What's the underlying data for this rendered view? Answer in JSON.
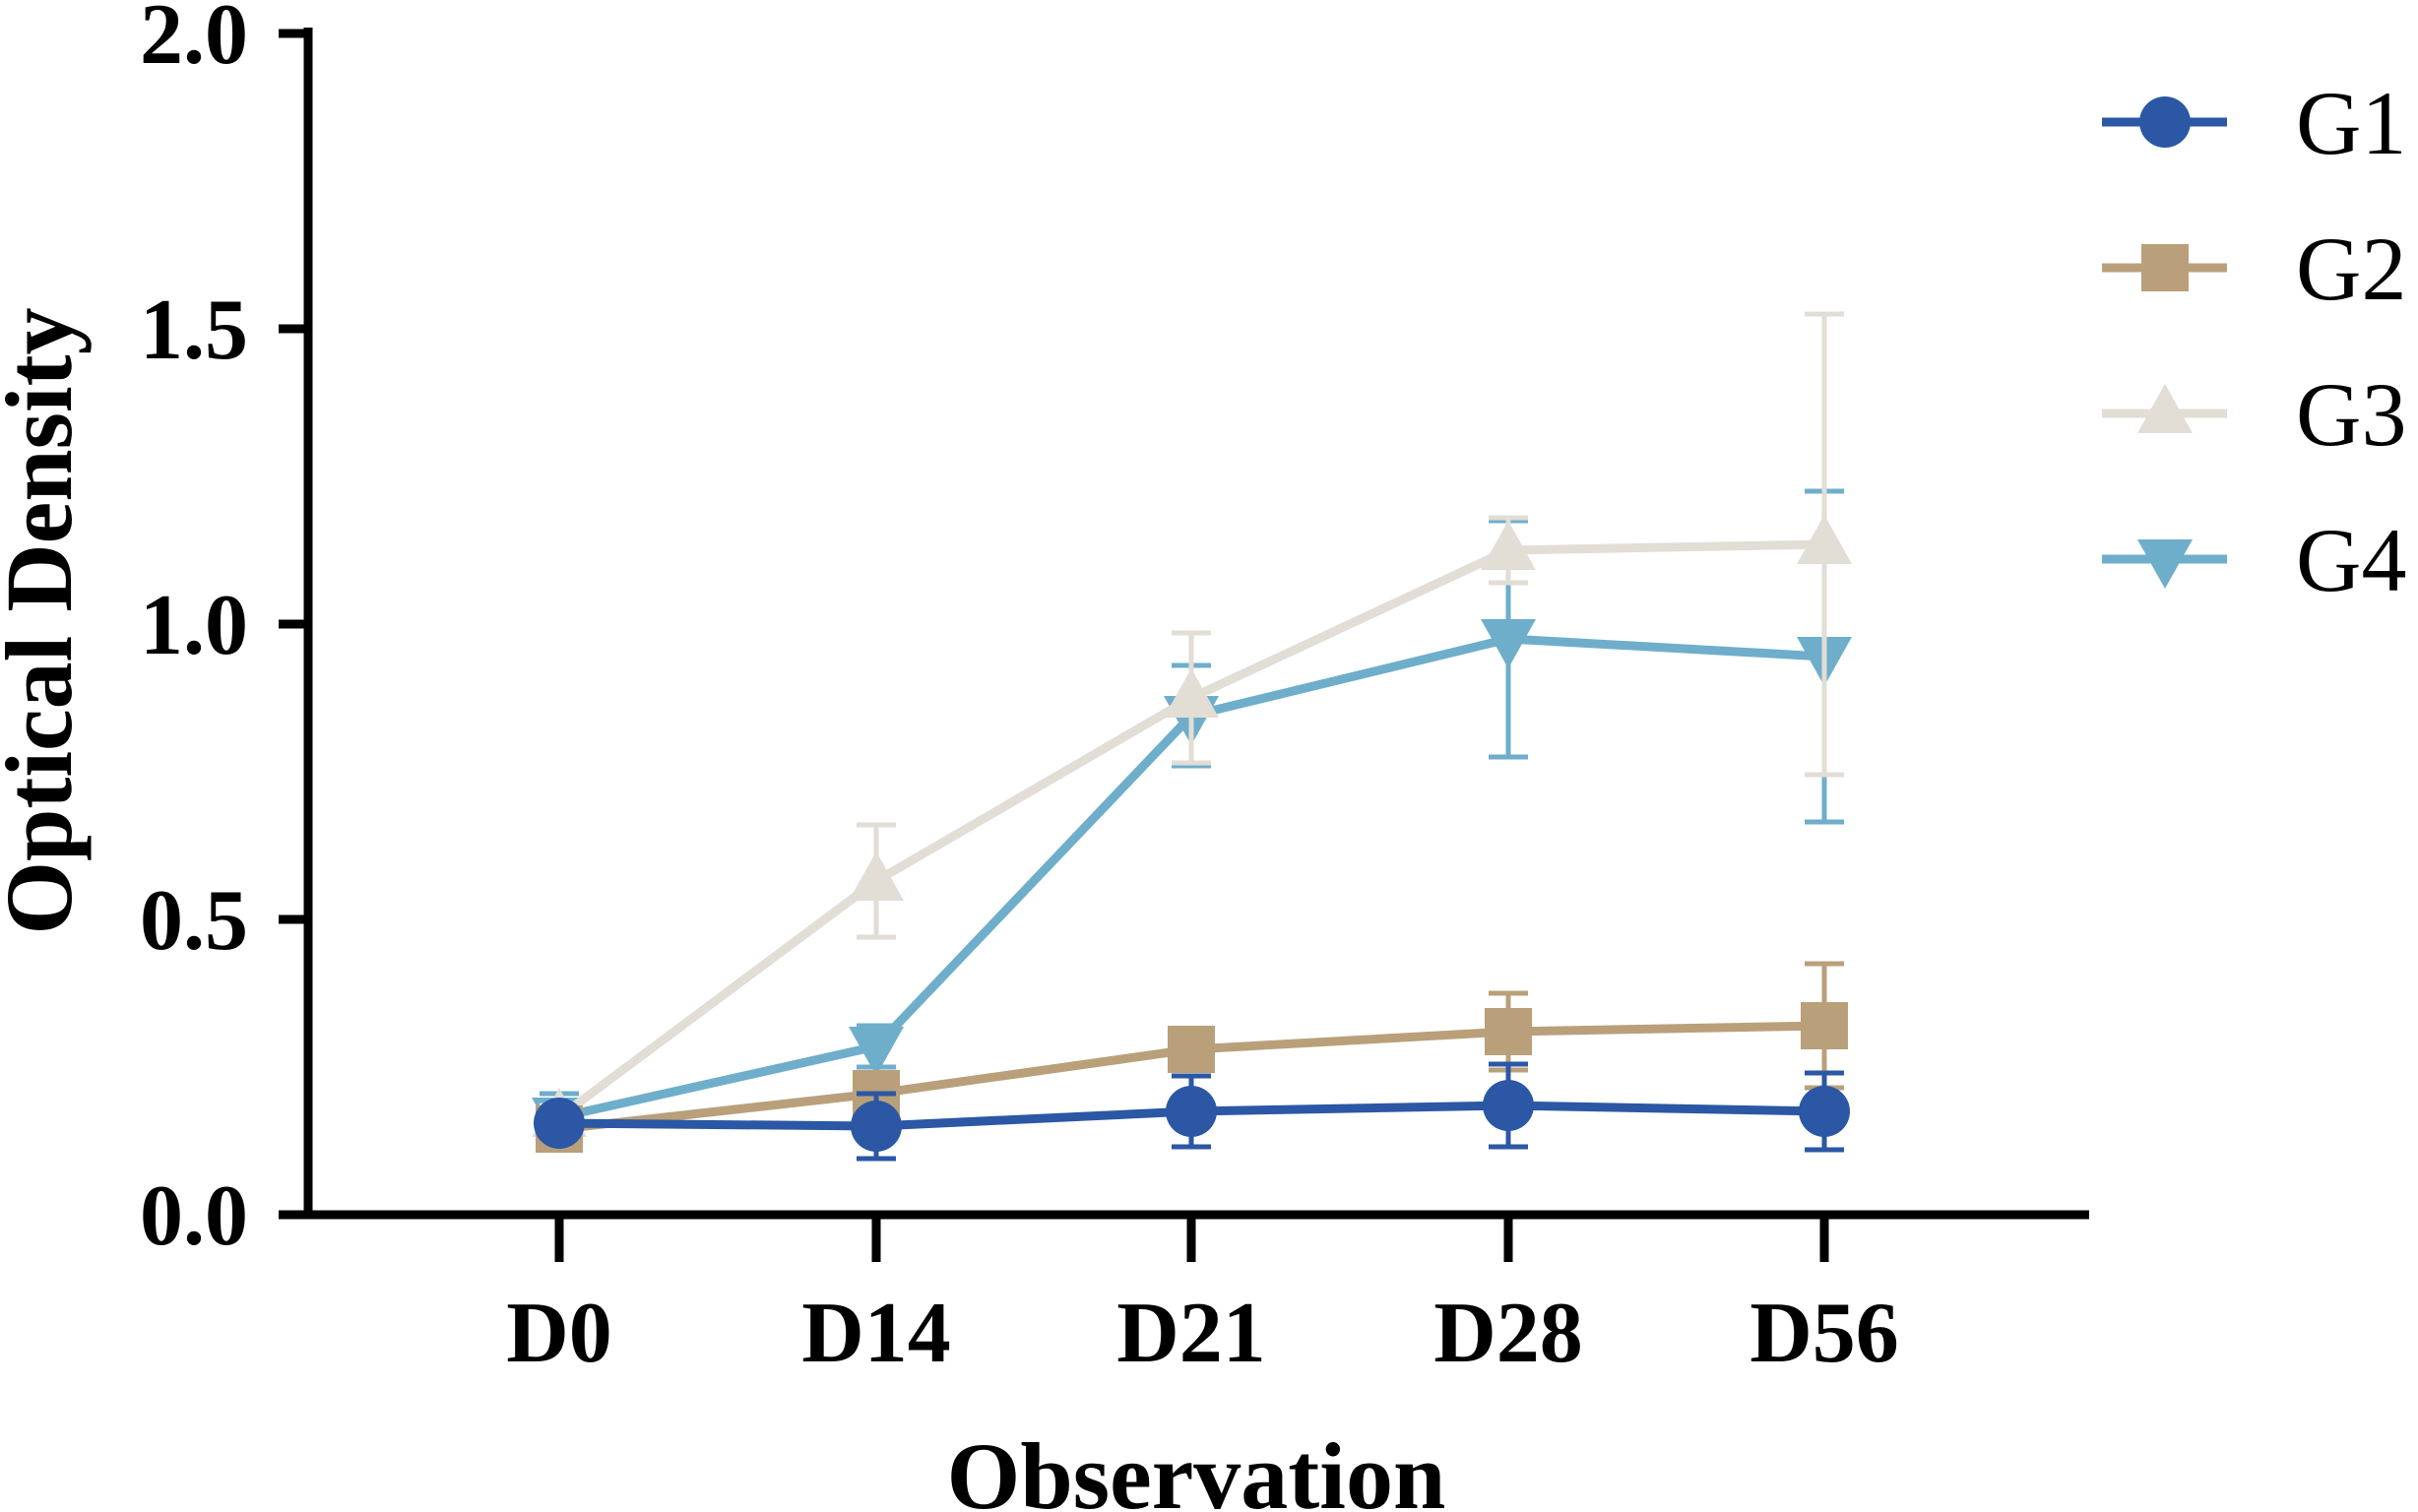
{
  "chart_data": {
    "type": "line",
    "xlabel": "Observation",
    "ylabel": "Optical Density",
    "categories": [
      "D0",
      "D14",
      "D21",
      "D28",
      "D56"
    ],
    "ylim": [
      0,
      2.0
    ],
    "yticks": [
      "0.0",
      "0.5",
      "1.0",
      "1.5",
      "2.0"
    ],
    "legend_position": "right",
    "series": [
      {
        "name": "G1",
        "marker": "circle",
        "color": "#2B57A5",
        "values": [
          0.155,
          0.15,
          0.175,
          0.185,
          0.175
        ],
        "error": [
          0.02,
          0.055,
          0.06,
          0.07,
          0.065
        ]
      },
      {
        "name": "G2",
        "marker": "square",
        "color": "#B9A07A",
        "values": [
          0.145,
          0.205,
          0.28,
          0.31,
          0.32
        ],
        "error": [
          0.02,
          0.03,
          0.03,
          0.065,
          0.105
        ]
      },
      {
        "name": "G3",
        "marker": "triangle-up",
        "color": "#E2DDD5",
        "values": [
          0.165,
          0.565,
          0.875,
          1.125,
          1.135
        ],
        "error": [
          0.02,
          0.095,
          0.11,
          0.055,
          0.39
        ]
      },
      {
        "name": "G4",
        "marker": "triangle-down",
        "color": "#6EAECB",
        "values": [
          0.165,
          0.285,
          0.845,
          0.975,
          0.945
        ],
        "error": [
          0.04,
          0.035,
          0.085,
          0.2,
          0.28
        ]
      }
    ]
  }
}
